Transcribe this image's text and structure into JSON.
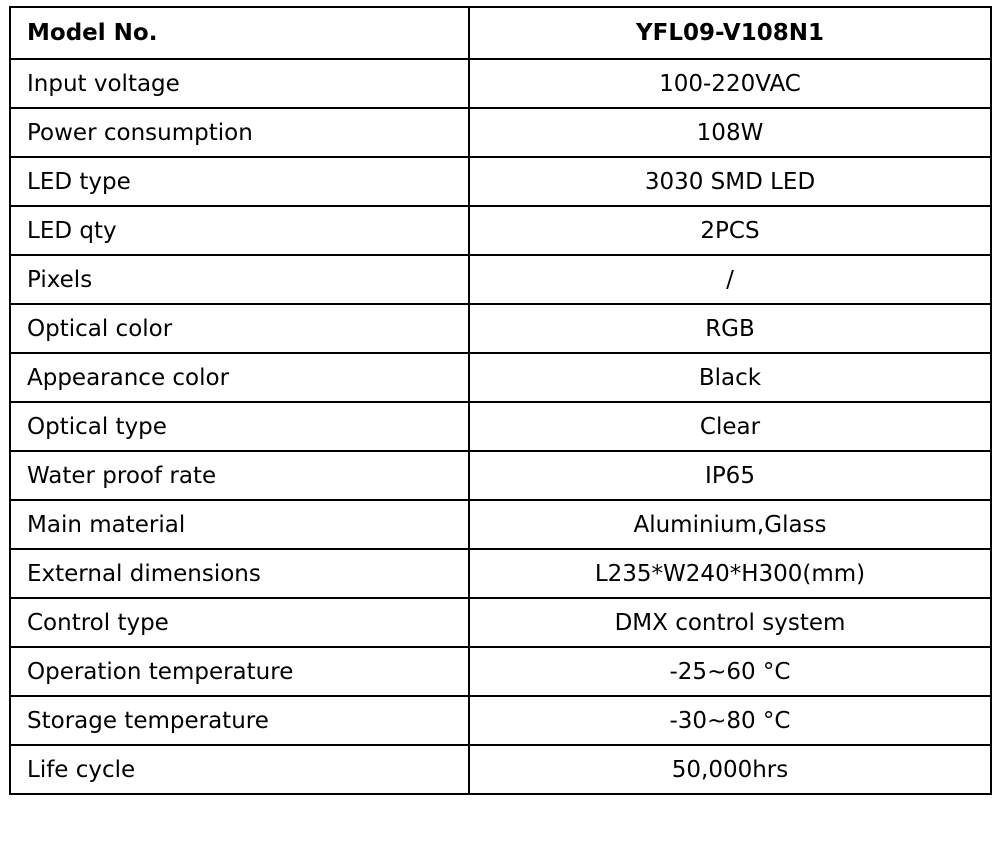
{
  "table": {
    "header": [
      "Model No.",
      "YFL09-V108N1"
    ],
    "rows": [
      [
        "Input voltage",
        "100-220VAC"
      ],
      [
        "Power consumption",
        "108W"
      ],
      [
        "LED type",
        "3030 SMD LED"
      ],
      [
        "LED qty",
        "2PCS"
      ],
      [
        "Pixels",
        "/"
      ],
      [
        "Optical color",
        "RGB"
      ],
      [
        "Appearance color",
        "Black"
      ],
      [
        "Optical type",
        "Clear"
      ],
      [
        "Water proof rate",
        "IP65"
      ],
      [
        "Main material",
        "Aluminium,Glass"
      ],
      [
        "External dimensions",
        "L235*W240*H300(mm)"
      ],
      [
        "Control type",
        "DMX control system"
      ],
      [
        "Operation temperature",
        "-25~60 °C"
      ],
      [
        "Storage temperature",
        "-30~80 °C"
      ],
      [
        "Life cycle",
        "50,000hrs"
      ]
    ]
  }
}
